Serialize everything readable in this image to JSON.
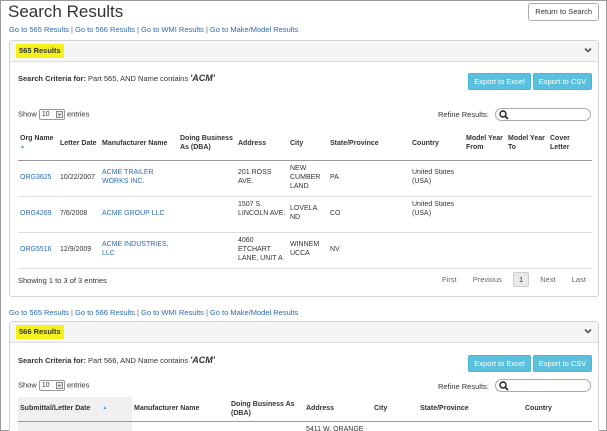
{
  "page_title": "Search Results",
  "return_button": "Return to Search",
  "nav_links": [
    "Go to 565 Results",
    "Go to 566 Results",
    "Go to WMI Results",
    "Go to Make/Model Results"
  ],
  "nav_separator": "|",
  "panel565": {
    "heading": "565 Results",
    "criteria_label": "Search Criteria for:",
    "criteria_text": " Part 565, AND Name contains ",
    "criteria_value": "'ACM'",
    "export_excel": "Export to Excel",
    "export_csv": "Export to CSV",
    "show_label": "Show",
    "page_size": "10",
    "entries_label": "entries",
    "refine_label": "Refine Results:",
    "columns": [
      "Org Name",
      "Letter Date",
      "Manufacturer Name",
      "Doing Business As (DBA)",
      "Address",
      "City",
      "State/Province",
      "Country",
      "Model Year From",
      "Model Year To",
      "Cover Letter"
    ],
    "rows": [
      {
        "org": "ORG3625",
        "date": "10/22/2007",
        "mfr": "ACME TRAILER WORKS INC.",
        "dba": "",
        "address": "201 ROSS AVE.",
        "city": "NEW CUMBER LAND",
        "state": "PA",
        "country": "United States (USA)",
        "from": "",
        "to": "",
        "cover": ""
      },
      {
        "org": "ORG4269",
        "date": "7/6/2008",
        "mfr": "ACME GROUP LLC",
        "dba": "",
        "address": "1507 S. LINCOLN AVE.",
        "city": "LOVELA ND",
        "state": "CO",
        "country": "United States (USA)",
        "from": "",
        "to": "",
        "cover": ""
      },
      {
        "org": "ORG5516",
        "date": "12/9/2009",
        "mfr": "ACME INDUSTRIES, LLC",
        "dba": "",
        "address": "4060 ETCHART LANE, UNIT A",
        "city": "WINNEM UCCA",
        "state": "NV",
        "country": "",
        "from": "",
        "to": "",
        "cover": ""
      }
    ],
    "showing": "Showing 1 to 3 of 3 entries",
    "pager": {
      "first": "First",
      "previous": "Previous",
      "current": "1",
      "next": "Next",
      "last": "Last"
    }
  },
  "panel566": {
    "heading": "566 Results",
    "criteria_label": "Search Criteria for:",
    "criteria_text": " Part 566, AND Name contains ",
    "criteria_value": "'ACM'",
    "export_excel": "Export to Excel",
    "export_csv": "Export to CSV",
    "show_label": "Show",
    "page_size": "10",
    "entries_label": "entries",
    "refine_label": "Refine Results:",
    "columns": [
      "Submittal/Letter Date",
      "Manufacturer Name",
      "Doing Business As (DBA)",
      "Address",
      "City",
      "State/Province",
      "Country"
    ],
    "first_row_address": "5411 W. ORANGE"
  },
  "colors": {
    "link": "#2a6ab4",
    "highlight": "#f4f21a",
    "export_button": "#5bc0de"
  },
  "icons": [
    "chevron-down-icon",
    "search-icon",
    "sort-asc-icon",
    "select-arrow-icon"
  ]
}
